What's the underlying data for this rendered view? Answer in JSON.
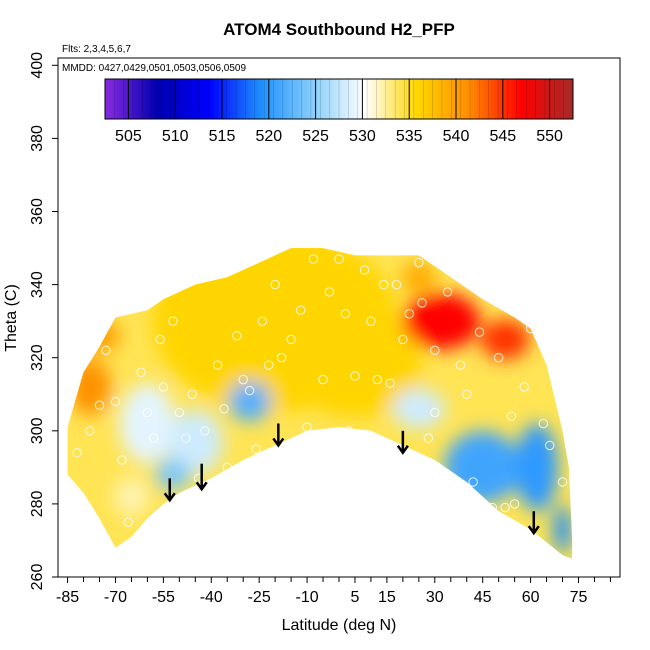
{
  "chart_data": {
    "type": "heatmap",
    "title": "ATOM4 Southbound H2_PFP",
    "annotations": {
      "flights": "Flts: 2,3,4,5,6,7",
      "dates": "MMDD: 0427,0429,0501,0503,0506,0509"
    },
    "xlabel": "Latitude (deg N)",
    "ylabel": "Theta (C)",
    "xlim": [
      -88,
      88
    ],
    "ylim": [
      260,
      402
    ],
    "x_ticks": [
      -85,
      -70,
      -55,
      -40,
      -25,
      -10,
      5,
      15,
      30,
      45,
      60,
      75
    ],
    "x_tick_labels": [
      "-85",
      "-70",
      "-55",
      "-40",
      "-25",
      "-10",
      "5",
      "15",
      "30",
      "45",
      "60",
      "75"
    ],
    "y_ticks": [
      260,
      280,
      300,
      320,
      340,
      360,
      380,
      400
    ],
    "y_tick_labels": [
      "260",
      "280",
      "300",
      "320",
      "340",
      "360",
      "380",
      "400"
    ],
    "colorbar": {
      "range": [
        502.5,
        552.5
      ],
      "ticks": [
        505,
        510,
        515,
        520,
        525,
        530,
        535,
        540,
        545,
        550
      ],
      "tick_labels": [
        "505",
        "510",
        "515",
        "520",
        "525",
        "530",
        "535",
        "540",
        "545",
        "550"
      ],
      "colors": [
        "#8a2be2",
        "#0000b0",
        "#0000ff",
        "#1e90ff",
        "#87cefa",
        "#ffffff",
        "#ffd700",
        "#ff8c00",
        "#ff0000",
        "#a52a2a"
      ]
    },
    "field_boundary": {
      "top": [
        [
          -85,
          301
        ],
        [
          -80,
          316
        ],
        [
          -75,
          323
        ],
        [
          -70,
          331
        ],
        [
          -60,
          333
        ],
        [
          -55,
          336
        ],
        [
          -45,
          340
        ],
        [
          -35,
          342
        ],
        [
          -25,
          346
        ],
        [
          -15,
          350
        ],
        [
          -5,
          350
        ],
        [
          5,
          348
        ],
        [
          15,
          348
        ],
        [
          25,
          348
        ],
        [
          35,
          342
        ],
        [
          45,
          336
        ],
        [
          55,
          331
        ],
        [
          60,
          328
        ],
        [
          65,
          318
        ],
        [
          70,
          300
        ],
        [
          72,
          290
        ],
        [
          73,
          270
        ]
      ],
      "bottom": [
        [
          73,
          265
        ],
        [
          70,
          266
        ],
        [
          60,
          273
        ],
        [
          50,
          278
        ],
        [
          40,
          286
        ],
        [
          30,
          292
        ],
        [
          20,
          296
        ],
        [
          10,
          300
        ],
        [
          0,
          301
        ],
        [
          -10,
          300
        ],
        [
          -20,
          296
        ],
        [
          -30,
          292
        ],
        [
          -40,
          287
        ],
        [
          -50,
          283
        ],
        [
          -55,
          280
        ],
        [
          -60,
          276
        ],
        [
          -65,
          271
        ],
        [
          -70,
          268
        ],
        [
          -75,
          276
        ],
        [
          -80,
          283
        ],
        [
          -85,
          288
        ]
      ]
    },
    "field_patches": [
      {
        "lat": -20,
        "theta": 330,
        "value": 536,
        "rx": 70,
        "ry": 45
      },
      {
        "lat": 5,
        "theta": 318,
        "value": 536,
        "rx": 38,
        "ry": 26
      },
      {
        "lat": -78,
        "theta": 312,
        "value": 541,
        "rx": 12,
        "ry": 14
      },
      {
        "lat": -75,
        "theta": 326,
        "value": 540,
        "rx": 12,
        "ry": 8
      },
      {
        "lat": -60,
        "theta": 302,
        "value": 529,
        "rx": 16,
        "ry": 20
      },
      {
        "lat": -45,
        "theta": 297,
        "value": 528,
        "rx": 16,
        "ry": 16
      },
      {
        "lat": -28,
        "theta": 308,
        "value": 522,
        "rx": 12,
        "ry": 10
      },
      {
        "lat": -52,
        "theta": 288,
        "value": 524,
        "rx": 10,
        "ry": 8
      },
      {
        "lat": -65,
        "theta": 282,
        "value": 532,
        "rx": 10,
        "ry": 10
      },
      {
        "lat": 32,
        "theta": 330,
        "value": 547,
        "rx": 22,
        "ry": 14
      },
      {
        "lat": 52,
        "theta": 325,
        "value": 545,
        "rx": 14,
        "ry": 10
      },
      {
        "lat": 25,
        "theta": 342,
        "value": 539,
        "rx": 10,
        "ry": 8
      },
      {
        "lat": 45,
        "theta": 290,
        "value": 521,
        "rx": 22,
        "ry": 18
      },
      {
        "lat": 62,
        "theta": 290,
        "value": 520,
        "rx": 12,
        "ry": 22
      },
      {
        "lat": 70,
        "theta": 273,
        "value": 519,
        "rx": 5,
        "ry": 12
      },
      {
        "lat": 25,
        "theta": 306,
        "value": 528,
        "rx": 15,
        "ry": 10
      }
    ],
    "arrows": [
      {
        "lat": -53,
        "theta_start": 287,
        "theta_end": 281
      },
      {
        "lat": -43,
        "theta_start": 291,
        "theta_end": 284
      },
      {
        "lat": -19,
        "theta_start": 302,
        "theta_end": 296
      },
      {
        "lat": 20,
        "theta_start": 300,
        "theta_end": 294
      },
      {
        "lat": 61,
        "theta_start": 278,
        "theta_end": 272
      }
    ],
    "observations": [
      [
        -82,
        294
      ],
      [
        -78,
        300
      ],
      [
        -75,
        307
      ],
      [
        -73,
        322
      ],
      [
        -70,
        308
      ],
      [
        -68,
        292
      ],
      [
        -66,
        275
      ],
      [
        -62,
        316
      ],
      [
        -60,
        305
      ],
      [
        -58,
        298
      ],
      [
        -56,
        325
      ],
      [
        -55,
        312
      ],
      [
        -52,
        330
      ],
      [
        -50,
        305
      ],
      [
        -48,
        298
      ],
      [
        -46,
        310
      ],
      [
        -44,
        287
      ],
      [
        -42,
        300
      ],
      [
        -38,
        318
      ],
      [
        -36,
        306
      ],
      [
        -35,
        290
      ],
      [
        -32,
        326
      ],
      [
        -30,
        314
      ],
      [
        -28,
        311
      ],
      [
        -26,
        295
      ],
      [
        -24,
        330
      ],
      [
        -22,
        318
      ],
      [
        -20,
        340
      ],
      [
        -18,
        320
      ],
      [
        -15,
        325
      ],
      [
        -12,
        333
      ],
      [
        -10,
        301
      ],
      [
        -8,
        347
      ],
      [
        -5,
        314
      ],
      [
        -3,
        338
      ],
      [
        0,
        347
      ],
      [
        2,
        332
      ],
      [
        3,
        300
      ],
      [
        5,
        315
      ],
      [
        8,
        344
      ],
      [
        10,
        330
      ],
      [
        12,
        314
      ],
      [
        14,
        340
      ],
      [
        16,
        313
      ],
      [
        18,
        340
      ],
      [
        20,
        325
      ],
      [
        22,
        332
      ],
      [
        25,
        346
      ],
      [
        26,
        335
      ],
      [
        28,
        298
      ],
      [
        30,
        305
      ],
      [
        30,
        322
      ],
      [
        34,
        338
      ],
      [
        38,
        318
      ],
      [
        40,
        310
      ],
      [
        42,
        286
      ],
      [
        44,
        327
      ],
      [
        48,
        279
      ],
      [
        50,
        320
      ],
      [
        52,
        279
      ],
      [
        54,
        304
      ],
      [
        55,
        280
      ],
      [
        58,
        312
      ],
      [
        60,
        328
      ],
      [
        64,
        302
      ],
      [
        66,
        296
      ],
      [
        70,
        286
      ]
    ]
  }
}
